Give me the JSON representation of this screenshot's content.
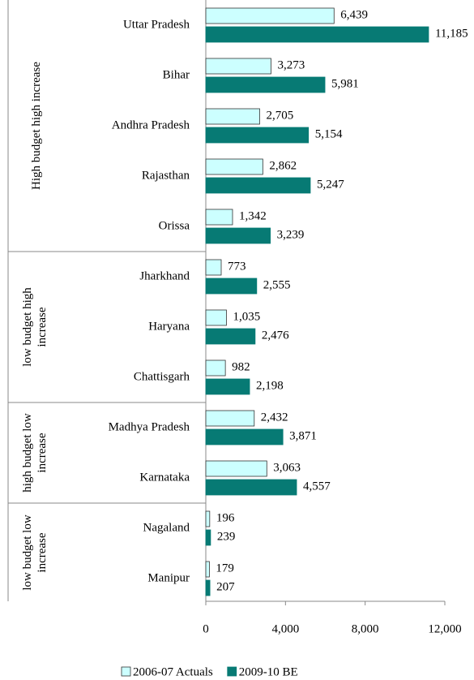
{
  "chart_data": {
    "type": "bar",
    "orientation": "horizontal",
    "groups": [
      {
        "label": "High budget high increase",
        "categories": [
          "Uttar Pradesh",
          "Bihar",
          "Andhra Pradesh",
          "Rajasthan",
          "Orissa"
        ]
      },
      {
        "label": "low budget high increase",
        "categories": [
          "Jharkhand",
          "Haryana",
          "Chattisgarh"
        ]
      },
      {
        "label": "high budget low increase",
        "categories": [
          "Madhya Pradesh",
          "Karnataka"
        ]
      },
      {
        "label": "low budget low increase",
        "categories": [
          "Nagaland",
          "Manipur"
        ]
      }
    ],
    "series": [
      {
        "name": "2006-07 Actuals",
        "color": "#ccffff",
        "values": [
          6439,
          3273,
          2705,
          2862,
          1342,
          773,
          1035,
          982,
          2432,
          3063,
          196,
          179
        ],
        "value_labels": [
          "6,439",
          "3,273",
          "2,705",
          "2,862",
          "1,342",
          "773",
          "1,035",
          "982",
          "2,432",
          "3,063",
          "196",
          "179"
        ]
      },
      {
        "name": "2009-10 BE",
        "color": "#077a74",
        "values": [
          11185,
          5981,
          5154,
          5247,
          3239,
          2555,
          2476,
          2198,
          3871,
          4557,
          239,
          207
        ],
        "value_labels": [
          "11,185",
          "5,981",
          "5,154",
          "5,247",
          "3,239",
          "2,555",
          "2,476",
          "2,198",
          "3,871",
          "4,557",
          "239",
          "207"
        ]
      }
    ],
    "xlim": [
      0,
      12000
    ],
    "xticks": [
      0,
      {
        "value": 4000,
        "label": "4,000"
      },
      {
        "value": 8000,
        "label": "8,000"
      },
      {
        "value": 12000,
        "label": "12,000"
      }
    ],
    "legend": "bottom"
  }
}
